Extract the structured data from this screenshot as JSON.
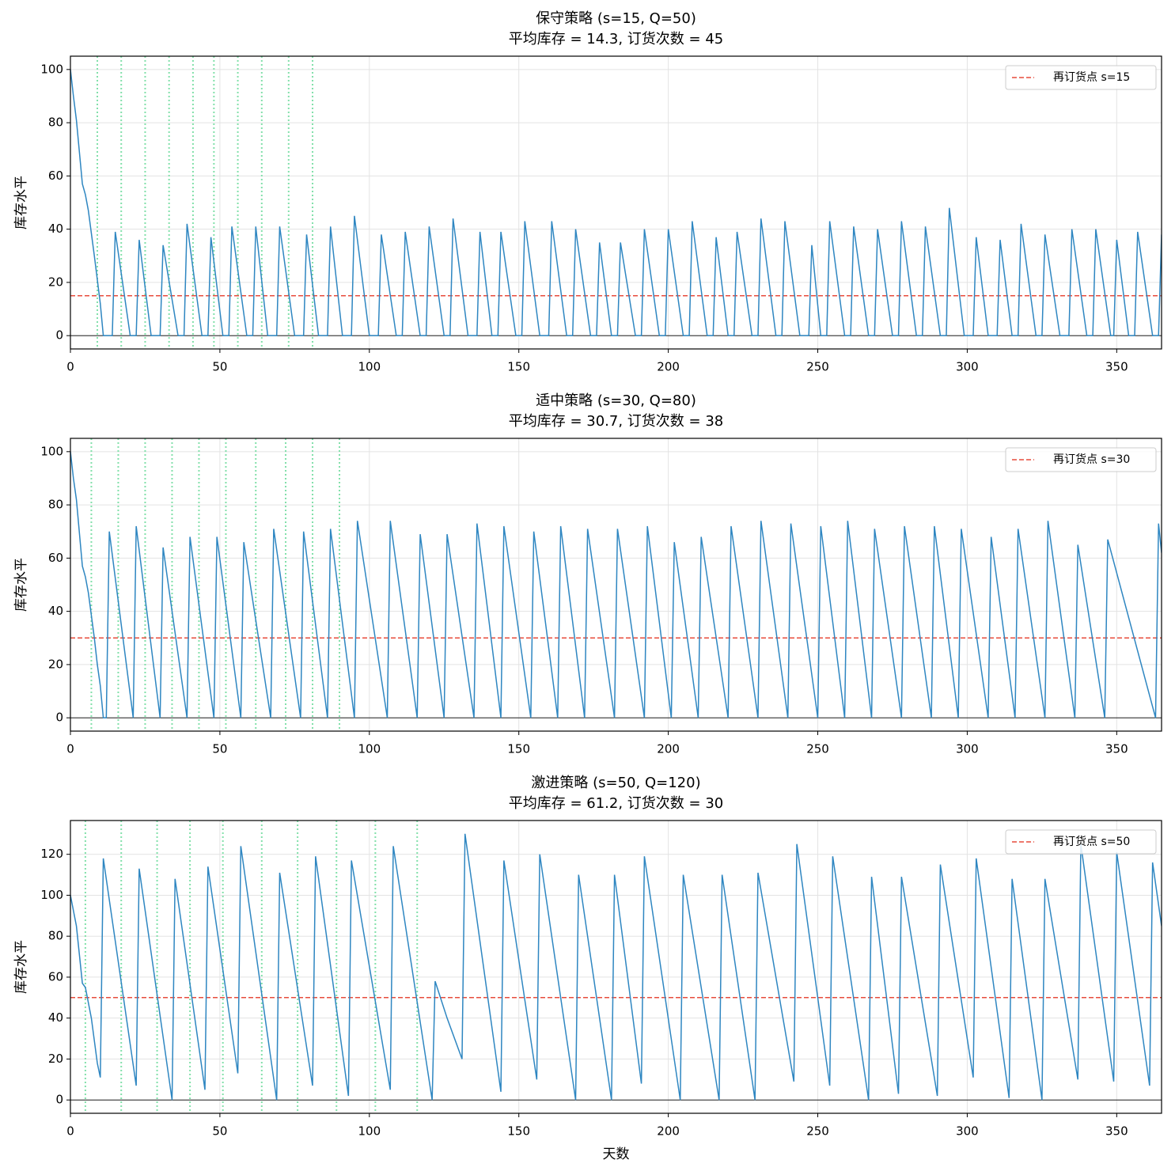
{
  "chart_data": [
    {
      "type": "line",
      "title": "保守策略 (s=15, Q=50)",
      "subtitle": "平均库存 = 14.3, 订货次数 = 45",
      "ylabel": "库存水平",
      "color": "#2e86c1",
      "x": [
        0,
        1,
        2,
        4,
        5,
        6,
        8,
        10,
        11,
        14,
        15,
        20,
        22,
        23,
        27,
        30,
        31,
        36,
        38,
        39,
        44,
        46,
        47,
        51,
        53,
        54,
        59,
        61,
        62,
        66,
        69,
        70,
        75,
        78,
        79,
        83,
        86,
        87,
        91,
        94,
        95,
        100,
        103,
        104,
        109,
        111,
        112,
        117,
        119,
        120,
        125,
        127,
        128,
        133,
        136,
        137,
        141,
        143,
        144,
        149,
        151,
        152,
        157,
        160,
        161,
        166,
        168,
        169,
        174,
        176,
        177,
        181,
        183,
        184,
        189,
        191,
        192,
        197,
        199,
        200,
        205,
        207,
        208,
        213,
        215,
        216,
        220,
        222,
        223,
        228,
        230,
        231,
        236,
        238,
        239,
        244,
        247,
        248,
        251,
        253,
        254,
        259,
        261,
        262,
        267,
        269,
        270,
        275,
        277,
        278,
        283,
        285,
        286,
        291,
        293,
        294,
        299,
        302,
        303,
        307,
        310,
        311,
        315,
        317,
        318,
        323,
        325,
        326,
        331,
        334,
        335,
        340,
        342,
        343,
        348,
        349,
        350,
        354,
        356,
        357,
        362,
        364,
        365
      ],
      "values": [
        100,
        90,
        81,
        57,
        53,
        47,
        30,
        12,
        0,
        0,
        39,
        0,
        0,
        36,
        0,
        0,
        34,
        0,
        0,
        42,
        0,
        0,
        37,
        0,
        0,
        41,
        0,
        0,
        41,
        0,
        0,
        41,
        0,
        0,
        38,
        0,
        0,
        41,
        0,
        0,
        45,
        0,
        0,
        38,
        0,
        0,
        39,
        0,
        0,
        41,
        0,
        0,
        44,
        0,
        0,
        39,
        0,
        0,
        39,
        0,
        0,
        43,
        0,
        0,
        43,
        0,
        0,
        40,
        0,
        0,
        35,
        0,
        0,
        35,
        0,
        0,
        40,
        0,
        0,
        40,
        0,
        0,
        43,
        0,
        0,
        37,
        0,
        0,
        39,
        0,
        0,
        44,
        0,
        0,
        43,
        0,
        0,
        34,
        0,
        0,
        43,
        0,
        0,
        41,
        0,
        0,
        40,
        0,
        0,
        43,
        0,
        0,
        41,
        0,
        0,
        48,
        0,
        0,
        37,
        0,
        0,
        36,
        0,
        0,
        42,
        0,
        0,
        38,
        0,
        0,
        40,
        0,
        0,
        40,
        0,
        0,
        36,
        0,
        0,
        39,
        0,
        0,
        38
      ],
      "reorder_point": {
        "value": 15,
        "label": "再订货点 s=15",
        "color": "#e74c3c"
      },
      "order_days": [
        9,
        17,
        25,
        33,
        41,
        48,
        56,
        64,
        73,
        81
      ],
      "order_color": "#82e0aa",
      "xlim": [
        0,
        365
      ],
      "xticks": [
        0,
        50,
        100,
        150,
        200,
        250,
        300,
        350
      ],
      "ylim": [
        -5,
        105
      ],
      "yticks": [
        0,
        20,
        40,
        60,
        80,
        100
      ],
      "grid": true,
      "legend": "upper right"
    },
    {
      "type": "line",
      "title": "适中策略 (s=30, Q=80)",
      "subtitle": "平均库存 = 30.7, 订货次数 = 38",
      "ylabel": "库存水平",
      "color": "#2e86c1",
      "x": [
        0,
        1,
        2,
        4,
        5,
        6,
        8,
        9,
        10,
        11,
        12,
        13,
        21,
        22,
        30,
        31,
        39,
        40,
        48,
        49,
        57,
        58,
        67,
        68,
        77,
        78,
        86,
        87,
        95,
        96,
        106,
        107,
        116,
        117,
        125,
        126,
        135,
        136,
        144,
        145,
        154,
        155,
        163,
        164,
        172,
        173,
        182,
        183,
        192,
        193,
        201,
        202,
        210,
        211,
        220,
        221,
        230,
        231,
        240,
        241,
        250,
        251,
        259,
        260,
        268,
        269,
        278,
        279,
        288,
        289,
        297,
        298,
        307,
        308,
        316,
        317,
        326,
        327,
        336,
        337,
        346,
        347,
        363,
        364,
        365
      ],
      "values": [
        100,
        90,
        82,
        57,
        53,
        47,
        30,
        20,
        12,
        0,
        0,
        70,
        0,
        72,
        0,
        64,
        0,
        68,
        0,
        68,
        0,
        66,
        0,
        71,
        0,
        70,
        0,
        71,
        0,
        74,
        0,
        74,
        0,
        69,
        0,
        69,
        0,
        73,
        0,
        72,
        0,
        70,
        0,
        72,
        0,
        71,
        0,
        71,
        0,
        72,
        0,
        66,
        0,
        68,
        0,
        72,
        0,
        74,
        0,
        73,
        0,
        72,
        0,
        74,
        0,
        71,
        0,
        72,
        0,
        72,
        0,
        71,
        0,
        68,
        0,
        71,
        0,
        74,
        0,
        65,
        0,
        67,
        0,
        73,
        62
      ],
      "reorder_point": {
        "value": 30,
        "label": "再订货点 s=30",
        "color": "#e74c3c"
      },
      "order_days": [
        7,
        16,
        25,
        34,
        43,
        52,
        62,
        72,
        81,
        90
      ],
      "order_color": "#82e0aa",
      "xlim": [
        0,
        365
      ],
      "xticks": [
        0,
        50,
        100,
        150,
        200,
        250,
        300,
        350
      ],
      "ylim": [
        -5,
        105
      ],
      "yticks": [
        0,
        20,
        40,
        60,
        80,
        100
      ],
      "grid": true,
      "legend": "upper right"
    },
    {
      "type": "line",
      "title": "激进策略 (s=50, Q=120)",
      "subtitle": "平均库存 = 61.2, 订货次数 = 30",
      "ylabel": "库存水平",
      "xlabel": "天数",
      "color": "#2e86c1",
      "x": [
        0,
        2,
        4,
        5,
        7,
        9,
        10,
        11,
        22,
        23,
        34,
        35,
        45,
        46,
        56,
        57,
        69,
        70,
        81,
        82,
        93,
        94,
        107,
        108,
        121,
        122,
        126,
        131,
        132,
        144,
        145,
        156,
        157,
        169,
        170,
        181,
        182,
        191,
        192,
        204,
        205,
        217,
        218,
        229,
        230,
        242,
        243,
        254,
        255,
        267,
        268,
        277,
        278,
        290,
        291,
        302,
        303,
        314,
        315,
        325,
        326,
        337,
        338,
        349,
        350,
        361,
        362,
        365
      ],
      "values": [
        100,
        85,
        57,
        55,
        40,
        18,
        11,
        118,
        7,
        113,
        0,
        108,
        5,
        114,
        13,
        124,
        0,
        111,
        7,
        119,
        2,
        117,
        5,
        124,
        0,
        58,
        40,
        20,
        130,
        4,
        117,
        10,
        120,
        0,
        110,
        0,
        110,
        8,
        119,
        0,
        110,
        0,
        110,
        0,
        111,
        9,
        125,
        7,
        119,
        0,
        109,
        3,
        109,
        2,
        115,
        11,
        118,
        1,
        108,
        0,
        108,
        10,
        125,
        9,
        121,
        7,
        116,
        85
      ],
      "reorder_point": {
        "value": 50,
        "label": "再订货点 s=50",
        "color": "#e74c3c"
      },
      "order_days": [
        5,
        17,
        29,
        40,
        51,
        64,
        76,
        89,
        102,
        116
      ],
      "order_color": "#82e0aa",
      "xlim": [
        0,
        365
      ],
      "xticks": [
        0,
        50,
        100,
        150,
        200,
        250,
        300,
        350
      ],
      "ylim": [
        -6.5,
        136.5
      ],
      "yticks": [
        0,
        20,
        40,
        60,
        80,
        100,
        120
      ],
      "grid": true,
      "legend": "upper right"
    }
  ]
}
